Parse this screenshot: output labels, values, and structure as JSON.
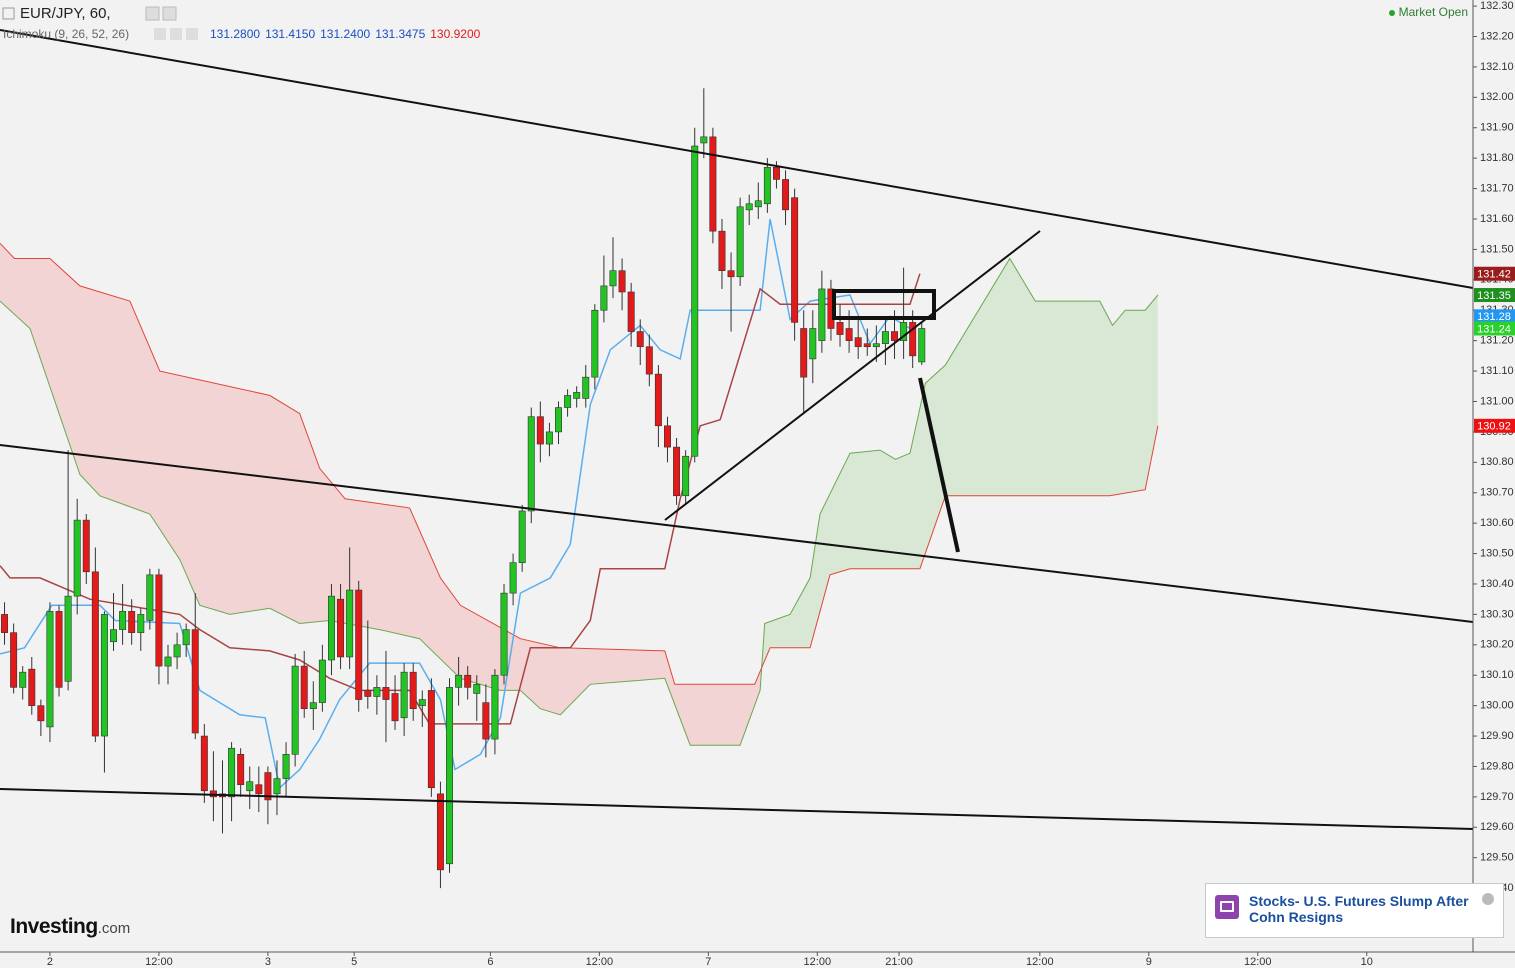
{
  "header": {
    "symbol": "EUR/JPY, 60,",
    "indicator": "Ichimoku (9, 26, 52, 26)",
    "indicator_values": [
      "131.2800",
      "131.4150",
      "131.2400",
      "131.3475",
      "130.9200"
    ],
    "indicator_value_colors": [
      "#1a4fc4",
      "#1a4fc4",
      "#1a4fc4",
      "#1a4fc4",
      "#e01b1b"
    ],
    "status": "Market Open"
  },
  "chart_data": {
    "type": "candlestick",
    "up_color": "#22c322",
    "down_color": "#e21a1a",
    "xlim": [
      -5.5,
      156.7
    ],
    "ylim": [
      129.19,
      132.32
    ],
    "xticks": [
      {
        "value": 0,
        "label": "2"
      },
      {
        "value": 12,
        "label": "12:00"
      },
      {
        "value": 24,
        "label": "3"
      },
      {
        "value": 33.5,
        "label": "5"
      },
      {
        "value": 48.5,
        "label": "6"
      },
      {
        "value": 60.5,
        "label": "12:00"
      },
      {
        "value": 72.5,
        "label": "7"
      },
      {
        "value": 84.5,
        "label": "12:00"
      },
      {
        "value": 93.5,
        "label": "21:00"
      },
      {
        "value": 109,
        "label": "12:00"
      },
      {
        "value": 121,
        "label": "9"
      },
      {
        "value": 133,
        "label": "12:00"
      },
      {
        "value": 145,
        "label": "10"
      }
    ],
    "yticks": [
      {
        "value": 132.3,
        "label": "132.30"
      },
      {
        "value": 132.2,
        "label": "132.20"
      },
      {
        "value": 132.1,
        "label": "132.10"
      },
      {
        "value": 132.0,
        "label": "132.00"
      },
      {
        "value": 131.9,
        "label": "131.90"
      },
      {
        "value": 131.8,
        "label": "131.80"
      },
      {
        "value": 131.7,
        "label": "131.70"
      },
      {
        "value": 131.6,
        "label": "131.60"
      },
      {
        "value": 131.5,
        "label": "131.50"
      },
      {
        "value": 131.4,
        "label": "131.40"
      },
      {
        "value": 131.3,
        "label": "131.30"
      },
      {
        "value": 131.2,
        "label": "131.20"
      },
      {
        "value": 131.1,
        "label": "131.10"
      },
      {
        "value": 131.0,
        "label": "131.00"
      },
      {
        "value": 130.9,
        "label": "130.90"
      },
      {
        "value": 130.8,
        "label": "130.80"
      },
      {
        "value": 130.7,
        "label": "130.70"
      },
      {
        "value": 130.6,
        "label": "130.60"
      },
      {
        "value": 130.5,
        "label": "130.50"
      },
      {
        "value": 130.4,
        "label": "130.40"
      },
      {
        "value": 130.3,
        "label": "130.30"
      },
      {
        "value": 130.2,
        "label": "130.20"
      },
      {
        "value": 130.1,
        "label": "130.10"
      },
      {
        "value": 130.0,
        "label": "130.00"
      },
      {
        "value": 129.9,
        "label": "129.90"
      },
      {
        "value": 129.8,
        "label": "129.80"
      },
      {
        "value": 129.7,
        "label": "129.70"
      },
      {
        "value": 129.6,
        "label": "129.60"
      },
      {
        "value": 129.5,
        "label": "129.50"
      },
      {
        "value": 129.4,
        "label": "129.40"
      }
    ],
    "x": [
      -5,
      -4,
      -3,
      -2,
      -1,
      0,
      1,
      2,
      3,
      4,
      5,
      6,
      7,
      8,
      9,
      10,
      11,
      12,
      13,
      14,
      15,
      16,
      17,
      18,
      19,
      20,
      21,
      22,
      23,
      24,
      25,
      26,
      27,
      28,
      29,
      30,
      31,
      32,
      33,
      34,
      35,
      36,
      37,
      38,
      39,
      40,
      41,
      42,
      43,
      44,
      45,
      46,
      47,
      48,
      49,
      50,
      51,
      52,
      53,
      54,
      55,
      56,
      57,
      58,
      59,
      60,
      61,
      62,
      63,
      64,
      65,
      66,
      67,
      68,
      69,
      70,
      71,
      72,
      73,
      74,
      75,
      76,
      77,
      78,
      79,
      80,
      81,
      82,
      83,
      84,
      85,
      86,
      87,
      88,
      89,
      90,
      91,
      92,
      93,
      94,
      95,
      96
    ],
    "candles": [
      [
        130.3,
        130.34,
        130.2,
        130.24
      ],
      [
        130.24,
        130.27,
        130.04,
        130.06
      ],
      [
        130.06,
        130.13,
        130.02,
        130.11
      ],
      [
        130.12,
        130.16,
        129.97,
        130.0
      ],
      [
        130.0,
        130.02,
        129.9,
        129.95
      ],
      [
        129.93,
        130.34,
        129.88,
        130.31
      ],
      [
        130.31,
        130.33,
        130.03,
        130.06
      ],
      [
        130.08,
        130.84,
        130.05,
        130.36
      ],
      [
        130.36,
        130.68,
        130.3,
        130.61
      ],
      [
        130.61,
        130.63,
        130.4,
        130.44
      ],
      [
        130.44,
        130.52,
        129.88,
        129.9
      ],
      [
        129.9,
        130.31,
        129.78,
        130.3
      ],
      [
        130.21,
        130.37,
        130.18,
        130.25
      ],
      [
        130.25,
        130.4,
        130.2,
        130.31
      ],
      [
        130.31,
        130.35,
        130.2,
        130.24
      ],
      [
        130.24,
        130.32,
        130.18,
        130.3
      ],
      [
        130.28,
        130.45,
        130.25,
        130.43
      ],
      [
        130.43,
        130.45,
        130.07,
        130.13
      ],
      [
        130.13,
        130.2,
        130.07,
        130.16
      ],
      [
        130.16,
        130.24,
        130.12,
        130.2
      ],
      [
        130.2,
        130.27,
        130.16,
        130.25
      ],
      [
        130.25,
        130.37,
        129.89,
        129.91
      ],
      [
        129.9,
        129.94,
        129.68,
        129.72
      ],
      [
        129.72,
        129.85,
        129.62,
        129.7
      ],
      [
        129.71,
        129.82,
        129.58,
        129.7
      ],
      [
        129.7,
        129.88,
        129.62,
        129.86
      ],
      [
        129.84,
        129.86,
        129.7,
        129.74
      ],
      [
        129.72,
        129.8,
        129.66,
        129.75
      ],
      [
        129.74,
        129.8,
        129.65,
        129.71
      ],
      [
        129.78,
        129.8,
        129.61,
        129.69
      ],
      [
        129.71,
        129.82,
        129.64,
        129.76
      ],
      [
        129.76,
        129.88,
        129.7,
        129.84
      ],
      [
        129.84,
        130.17,
        129.8,
        130.13
      ],
      [
        130.13,
        130.18,
        129.96,
        129.99
      ],
      [
        129.99,
        130.08,
        129.92,
        130.01
      ],
      [
        130.01,
        130.2,
        129.98,
        130.15
      ],
      [
        130.15,
        130.4,
        130.1,
        130.36
      ],
      [
        130.35,
        130.4,
        130.12,
        130.16
      ],
      [
        130.16,
        130.52,
        130.12,
        130.38
      ],
      [
        130.38,
        130.41,
        129.98,
        130.02
      ],
      [
        130.05,
        130.28,
        129.99,
        130.03
      ],
      [
        130.03,
        130.1,
        129.97,
        130.06
      ],
      [
        130.06,
        130.18,
        129.88,
        130.02
      ],
      [
        130.04,
        130.1,
        129.92,
        129.95
      ],
      [
        129.96,
        130.14,
        129.9,
        130.11
      ],
      [
        130.11,
        130.14,
        129.95,
        129.99
      ],
      [
        130.0,
        130.05,
        129.93,
        130.02
      ],
      [
        130.05,
        130.09,
        129.7,
        129.73
      ],
      [
        129.71,
        129.75,
        129.4,
        129.46
      ],
      [
        129.48,
        130.09,
        129.45,
        130.06
      ],
      [
        130.06,
        130.16,
        130.0,
        130.1
      ],
      [
        130.1,
        130.13,
        130.02,
        130.06
      ],
      [
        130.04,
        130.1,
        129.95,
        130.07
      ],
      [
        130.01,
        130.07,
        129.83,
        129.89
      ],
      [
        129.89,
        130.12,
        129.84,
        130.1
      ],
      [
        130.1,
        130.4,
        130.07,
        130.37
      ],
      [
        130.37,
        130.5,
        130.33,
        130.47
      ],
      [
        130.47,
        130.66,
        130.44,
        130.64
      ],
      [
        130.64,
        130.98,
        130.6,
        130.95
      ],
      [
        130.95,
        131.0,
        130.8,
        130.86
      ],
      [
        130.86,
        130.93,
        130.82,
        130.9
      ],
      [
        130.9,
        131.0,
        130.86,
        130.98
      ],
      [
        130.98,
        131.04,
        130.95,
        131.02
      ],
      [
        131.01,
        131.05,
        130.98,
        131.03
      ],
      [
        131.01,
        131.12,
        130.98,
        131.08
      ],
      [
        131.08,
        131.32,
        131.04,
        131.3
      ],
      [
        131.3,
        131.48,
        131.26,
        131.38
      ],
      [
        131.38,
        131.54,
        131.34,
        131.43
      ],
      [
        131.43,
        131.47,
        131.3,
        131.36
      ],
      [
        131.36,
        131.39,
        131.18,
        131.23
      ],
      [
        131.23,
        131.27,
        131.12,
        131.18
      ],
      [
        131.18,
        131.22,
        131.05,
        131.09
      ],
      [
        131.09,
        131.12,
        130.85,
        130.92
      ],
      [
        130.92,
        130.95,
        130.8,
        130.85
      ],
      [
        130.85,
        130.88,
        130.66,
        130.69
      ],
      [
        130.69,
        130.84,
        130.66,
        130.82
      ],
      [
        130.82,
        131.9,
        130.8,
        131.84
      ],
      [
        131.85,
        132.03,
        131.8,
        131.87
      ],
      [
        131.87,
        131.9,
        131.52,
        131.56
      ],
      [
        131.56,
        131.6,
        131.37,
        131.43
      ],
      [
        131.43,
        131.49,
        131.23,
        131.41
      ],
      [
        131.41,
        131.67,
        131.38,
        131.64
      ],
      [
        131.63,
        131.68,
        131.58,
        131.65
      ],
      [
        131.64,
        131.72,
        131.6,
        131.66
      ],
      [
        131.65,
        131.8,
        131.62,
        131.77
      ],
      [
        131.77,
        131.79,
        131.7,
        131.73
      ],
      [
        131.73,
        131.76,
        131.58,
        131.63
      ],
      [
        131.67,
        131.7,
        131.2,
        131.26
      ],
      [
        131.24,
        131.3,
        130.96,
        131.08
      ],
      [
        131.14,
        131.3,
        131.06,
        131.24
      ],
      [
        131.2,
        131.43,
        131.16,
        131.37
      ],
      [
        131.37,
        131.4,
        131.2,
        131.24
      ],
      [
        131.26,
        131.32,
        131.18,
        131.22
      ],
      [
        131.24,
        131.3,
        131.16,
        131.2
      ],
      [
        131.21,
        131.28,
        131.14,
        131.18
      ],
      [
        131.19,
        131.24,
        131.15,
        131.18
      ],
      [
        131.18,
        131.25,
        131.13,
        131.19
      ],
      [
        131.19,
        131.28,
        131.12,
        131.23
      ],
      [
        131.23,
        131.3,
        131.14,
        131.2
      ],
      [
        131.2,
        131.44,
        131.14,
        131.26
      ],
      [
        131.26,
        131.3,
        131.11,
        131.15
      ],
      [
        131.13,
        131.26,
        131.12,
        131.24
      ]
    ],
    "lines": [
      {
        "color": "#5aaef0",
        "x": [
          -5.5,
          -2.8,
          0.2,
          5.5,
          7.2,
          14.3,
          16.5,
          20.9,
          23.7,
          25.3,
          27.5,
          29.7,
          31.9,
          35.2,
          40.7,
          43,
          44.6,
          47.4,
          49.6,
          51.8,
          55.1,
          57.3,
          59.5,
          61.7,
          65,
          67.2,
          69.4,
          70.5,
          78.2,
          79.3,
          81.5,
          83.7,
          88.1,
          90.3,
          92.5,
          94.7
        ],
        "values": [
          130.17,
          130.19,
          130.33,
          130.33,
          130.28,
          130.27,
          130.05,
          129.97,
          129.96,
          129.73,
          129.79,
          129.89,
          130.02,
          130.14,
          130.14,
          130.02,
          129.79,
          129.84,
          129.96,
          130.37,
          130.42,
          130.53,
          130.99,
          131.17,
          131.25,
          131.17,
          131.14,
          131.3,
          131.3,
          131.6,
          131.27,
          131.33,
          131.35,
          131.19,
          131.28,
          131.24
        ]
      },
      {
        "color": "#a94444",
        "x": [
          -5.5,
          -4.4,
          -1.1,
          4.4,
          14.3,
          16.5,
          19.8,
          24.2,
          27.5,
          30.8,
          34.1,
          39.6,
          41.8,
          50.7,
          52.9,
          57.3,
          59.5,
          60.6,
          67.7,
          69.4,
          71.6,
          73.8,
          78.2,
          80.4,
          94.7,
          95.8
        ],
        "values": [
          130.46,
          130.42,
          130.42,
          130.35,
          130.3,
          130.25,
          130.19,
          130.18,
          130.15,
          130.09,
          130.05,
          130.05,
          129.94,
          129.94,
          130.19,
          130.19,
          130.28,
          130.45,
          130.45,
          130.68,
          130.92,
          130.94,
          131.37,
          131.32,
          131.32,
          131.42
        ]
      }
    ],
    "cloud": {
      "bull_color": "#d8e8d4",
      "bear_color": "#f2d4d4",
      "span_a": {
        "color": "#6aa84f",
        "x": [
          -5.5,
          -2.2,
          3.3,
          5.5,
          11,
          14.3,
          16.5,
          19.8,
          24.2,
          27.5,
          30.8,
          36.3,
          40.7,
          45.2,
          49.6,
          51.8,
          54,
          56.2,
          59.5,
          67.7,
          70.5,
          76,
          78.2,
          78.7,
          81.5,
          83.7,
          84.8,
          88.1,
          91.4,
          93.1,
          94.7,
          96.4,
          98.6,
          105.7,
          108.5,
          115.6,
          117,
          118.4,
          120.6,
          122
        ],
        "values": [
          131.33,
          131.24,
          130.76,
          130.69,
          130.63,
          130.48,
          130.33,
          130.3,
          130.32,
          130.27,
          130.28,
          130.25,
          130.22,
          130.09,
          130.05,
          130.05,
          129.99,
          129.97,
          130.07,
          130.09,
          129.87,
          129.87,
          130.05,
          130.27,
          130.3,
          130.42,
          130.63,
          130.83,
          130.84,
          130.81,
          130.83,
          131.06,
          131.12,
          131.47,
          131.33,
          131.33,
          131.25,
          131.3,
          131.3,
          131.35
        ]
      },
      "span_b": {
        "color": "#e0453a",
        "x": [
          -5.5,
          -3.9,
          0,
          3.3,
          8.8,
          12.1,
          24.2,
          27.5,
          29.7,
          32.5,
          39.6,
          43,
          45.2,
          51.8,
          56.2,
          67.7,
          68.8,
          77.6,
          79.3,
          83.7,
          85.9,
          88.1,
          95.8,
          98.6,
          116.7,
          120.6,
          122
        ],
        "values": [
          131.52,
          131.47,
          131.47,
          131.38,
          131.33,
          131.1,
          131.02,
          130.96,
          130.78,
          130.68,
          130.65,
          130.42,
          130.33,
          130.22,
          130.19,
          130.18,
          130.07,
          130.07,
          130.19,
          130.19,
          130.43,
          130.45,
          130.45,
          130.69,
          130.69,
          130.71,
          130.92
        ]
      }
    },
    "price_tags": [
      {
        "value": 131.42,
        "color": "#9b1c1c"
      },
      {
        "value": 131.35,
        "color": "#1f8f1f"
      },
      {
        "value": 131.28,
        "color": "#2196f3"
      },
      {
        "value": 131.24,
        "color": "#2bd12b"
      },
      {
        "value": 130.92,
        "color": "#ee1111"
      }
    ]
  },
  "news": {
    "headline": "Stocks- U.S. Futures Slump After Cohn Resigns"
  },
  "logo": {
    "name": "Investing",
    "suffix": ".com"
  }
}
